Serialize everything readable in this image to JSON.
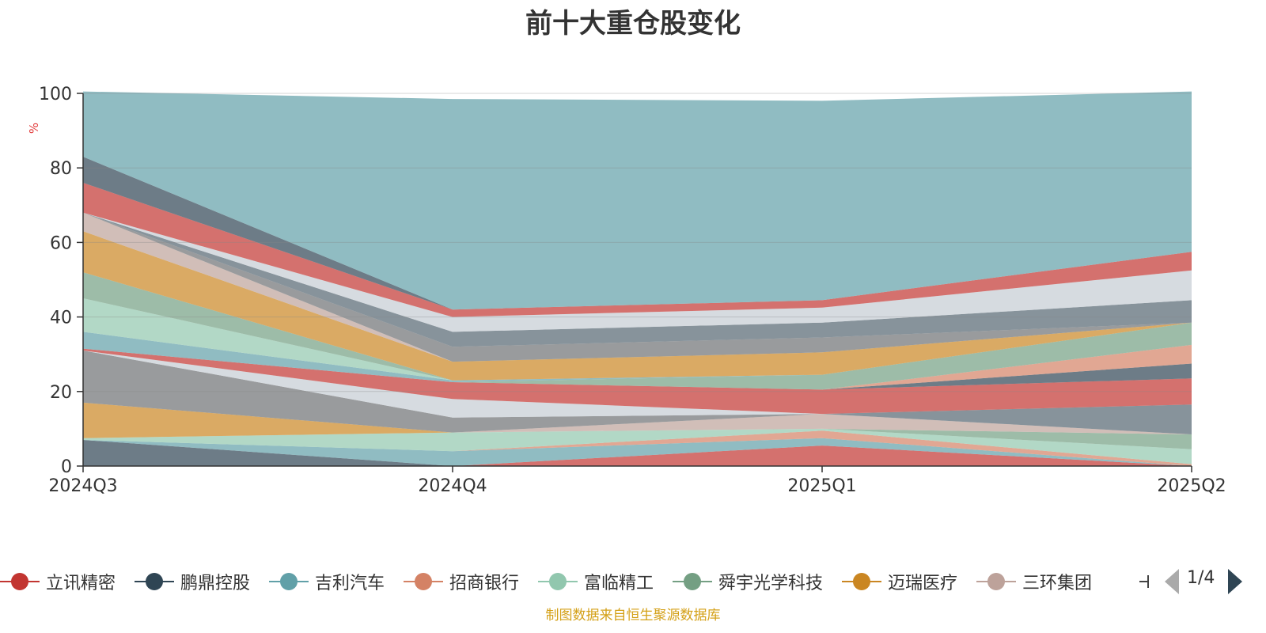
{
  "chart_data": {
    "type": "area",
    "title": "前十大重仓股变化",
    "ylabel": "%",
    "ylim": [
      0,
      100
    ],
    "yticks": [
      0,
      20,
      40,
      60,
      80,
      100
    ],
    "x": [
      "2024Q3",
      "2024Q4",
      "2025Q1",
      "2025Q2"
    ],
    "grid": true,
    "stacked": true,
    "series": [
      {
        "name": "立讯精密",
        "color": "#c23531",
        "values": [
          0,
          0,
          5.5,
          0
        ]
      },
      {
        "name": "鹏鼎控股",
        "color": "#2f4554",
        "values": [
          7,
          0,
          0,
          0
        ]
      },
      {
        "name": "吉利汽车",
        "color": "#61a0a8",
        "values": [
          0,
          4,
          2,
          0
        ]
      },
      {
        "name": "招商银行",
        "color": "#d48265",
        "values": [
          0,
          0,
          2,
          0.5
        ]
      },
      {
        "name": "富临精工",
        "color": "#91c7ae",
        "values": [
          0.5,
          5,
          0.5,
          4
        ]
      },
      {
        "name": "舜宇光学科技",
        "color": "#749f83",
        "values": [
          0,
          0,
          0,
          4
        ]
      },
      {
        "name": "迈瑞医疗",
        "color": "#ca8622",
        "values": [
          9.5,
          0,
          0,
          0
        ]
      },
      {
        "name": "三环集团",
        "color": "#bda29a",
        "values": [
          0,
          0,
          4,
          0
        ]
      },
      {
        "name": "",
        "color": "#6e7074",
        "values": [
          14,
          4,
          0,
          0
        ]
      },
      {
        "name": "",
        "color": "#c4ccd3",
        "values": [
          0,
          5,
          0,
          0
        ]
      },
      {
        "name": "",
        "color": "#546570",
        "values": [
          0,
          0,
          0,
          8
        ]
      },
      {
        "name": "",
        "color": "#c23531",
        "values": [
          0.5,
          4.5,
          6.5,
          7
        ]
      },
      {
        "name": "",
        "color": "#2f4554",
        "values": [
          0,
          0,
          0,
          4
        ]
      },
      {
        "name": "",
        "color": "#d48265",
        "values": [
          0,
          0,
          0,
          5
        ]
      },
      {
        "name": "",
        "color": "#749f83",
        "values": [
          0,
          0,
          4,
          6
        ]
      },
      {
        "name": "",
        "color": "#61a0a8",
        "values": [
          4.5,
          0.5,
          0,
          0
        ]
      },
      {
        "name": "",
        "color": "#91c7ae",
        "values": [
          9,
          0,
          0,
          0
        ]
      },
      {
        "name": "",
        "color": "#749f83",
        "values": [
          7,
          0,
          0,
          0
        ]
      },
      {
        "name": "",
        "color": "#ca8622",
        "values": [
          11,
          5,
          6,
          0
        ]
      },
      {
        "name": "",
        "color": "#bda29a",
        "values": [
          5,
          0,
          0,
          0
        ]
      },
      {
        "name": "",
        "color": "#6e7074",
        "values": [
          0,
          4,
          4,
          0
        ]
      },
      {
        "name": "",
        "color": "#546570",
        "values": [
          0,
          4,
          4,
          6
        ]
      },
      {
        "name": "",
        "color": "#c4ccd3",
        "values": [
          0,
          4,
          4,
          8
        ]
      },
      {
        "name": "",
        "color": "#c23531",
        "values": [
          8,
          2,
          2,
          5
        ]
      },
      {
        "name": "",
        "color": "#2f4554",
        "values": [
          7,
          0,
          0,
          0
        ]
      },
      {
        "name": "",
        "color": "#61a0a8",
        "values": [
          17.5,
          56.5,
          53.5,
          43
        ]
      }
    ]
  },
  "legend": {
    "items": [
      {
        "label": "立讯精密",
        "color": "#c23531"
      },
      {
        "label": "鹏鼎控股",
        "color": "#2f4554"
      },
      {
        "label": "吉利汽车",
        "color": "#61a0a8"
      },
      {
        "label": "招商银行",
        "color": "#d48265"
      },
      {
        "label": "富临精工",
        "color": "#91c7ae"
      },
      {
        "label": "舜宇光学科技",
        "color": "#749f83"
      },
      {
        "label": "迈瑞医疗",
        "color": "#ca8622"
      },
      {
        "label": "三环集团",
        "color": "#bda29a"
      }
    ],
    "page_indicator": "1/4"
  },
  "source_note": "制图数据来自恒生聚源数据库"
}
